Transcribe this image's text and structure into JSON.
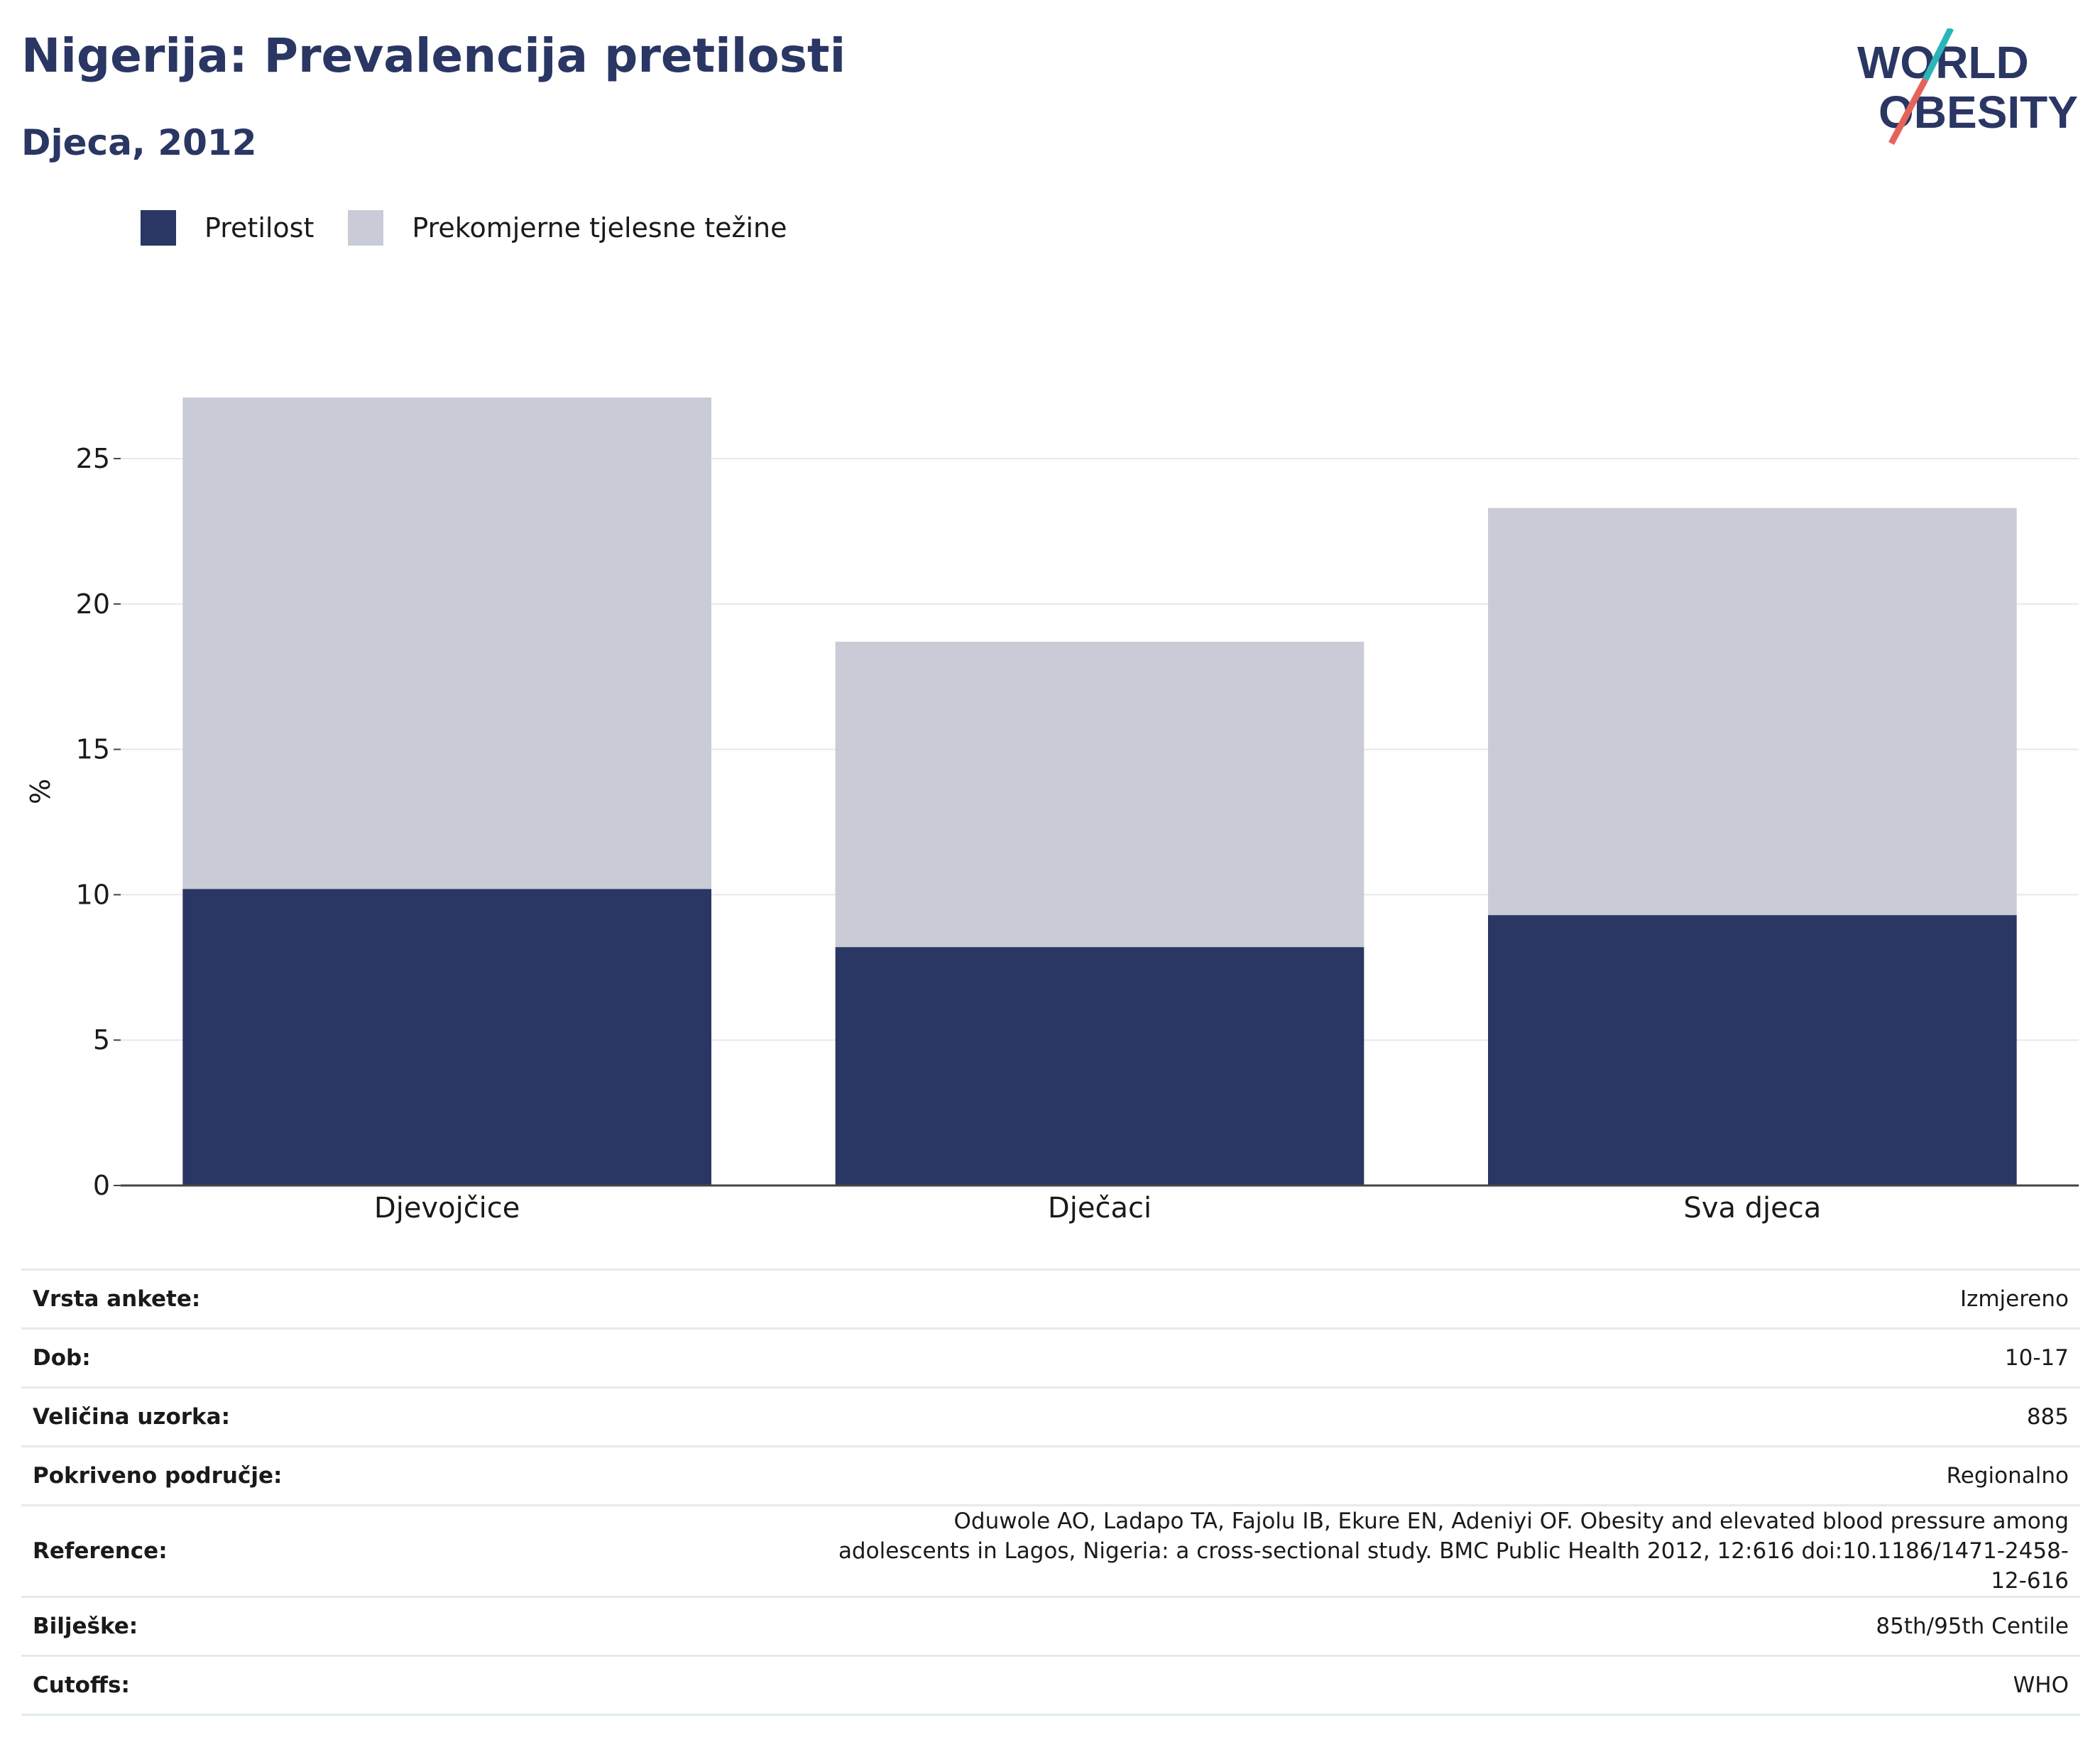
{
  "header": {
    "title": "Nigerija: Prevalencija pretilosti",
    "subtitle": "Djeca, 2012"
  },
  "logo": {
    "line1": "WORLD",
    "line2": "OBESITY",
    "text_color": "#2a3663",
    "slash_colors": [
      "#2bb5b8",
      "#e5645a"
    ]
  },
  "legend": [
    {
      "label": "Pretilost",
      "color": "#2a3663"
    },
    {
      "label": "Prekomjerne tjelesne težine",
      "color": "#c9ccd7"
    }
  ],
  "chart_data": {
    "type": "bar",
    "stacked": true,
    "categories": [
      "Djevojčice",
      "Dječaci",
      "Sva djeca"
    ],
    "series": [
      {
        "name": "Pretilost",
        "values": [
          10.2,
          8.2,
          9.3
        ],
        "color": "#2a3663"
      },
      {
        "name": "Prekomjerne tjelesne težine",
        "values": [
          16.9,
          10.5,
          14.0
        ],
        "color": "#c9ccd7"
      }
    ],
    "title": "Nigerija: Prevalencija pretilosti",
    "subtitle": "Djeca, 2012",
    "xlabel": "",
    "ylabel": "%",
    "ylim": [
      0,
      27.1
    ],
    "yticks": [
      0,
      5,
      10,
      15,
      20,
      25
    ],
    "grid": true,
    "legend_position": "top-left"
  },
  "info": [
    {
      "key": "Vrsta ankete:",
      "value": "Izmjereno"
    },
    {
      "key": "Dob:",
      "value": "10-17"
    },
    {
      "key": "Veličina uzorka:",
      "value": "885"
    },
    {
      "key": "Pokriveno područje:",
      "value": "Regionalno"
    },
    {
      "key": "Reference:",
      "value": "Oduwole AO, Ladapo TA, Fajolu IB, Ekure EN, Adeniyi OF. Obesity and elevated blood pressure among adolescents in Lagos, Nigeria: a cross-sectional study. BMC Public Health 2012, 12:616 doi:10.1186/1471-2458-12-616"
    },
    {
      "key": "Bilješke:",
      "value": "85th/95th Centile"
    },
    {
      "key": "Cutoffs:",
      "value": "WHO"
    }
  ]
}
